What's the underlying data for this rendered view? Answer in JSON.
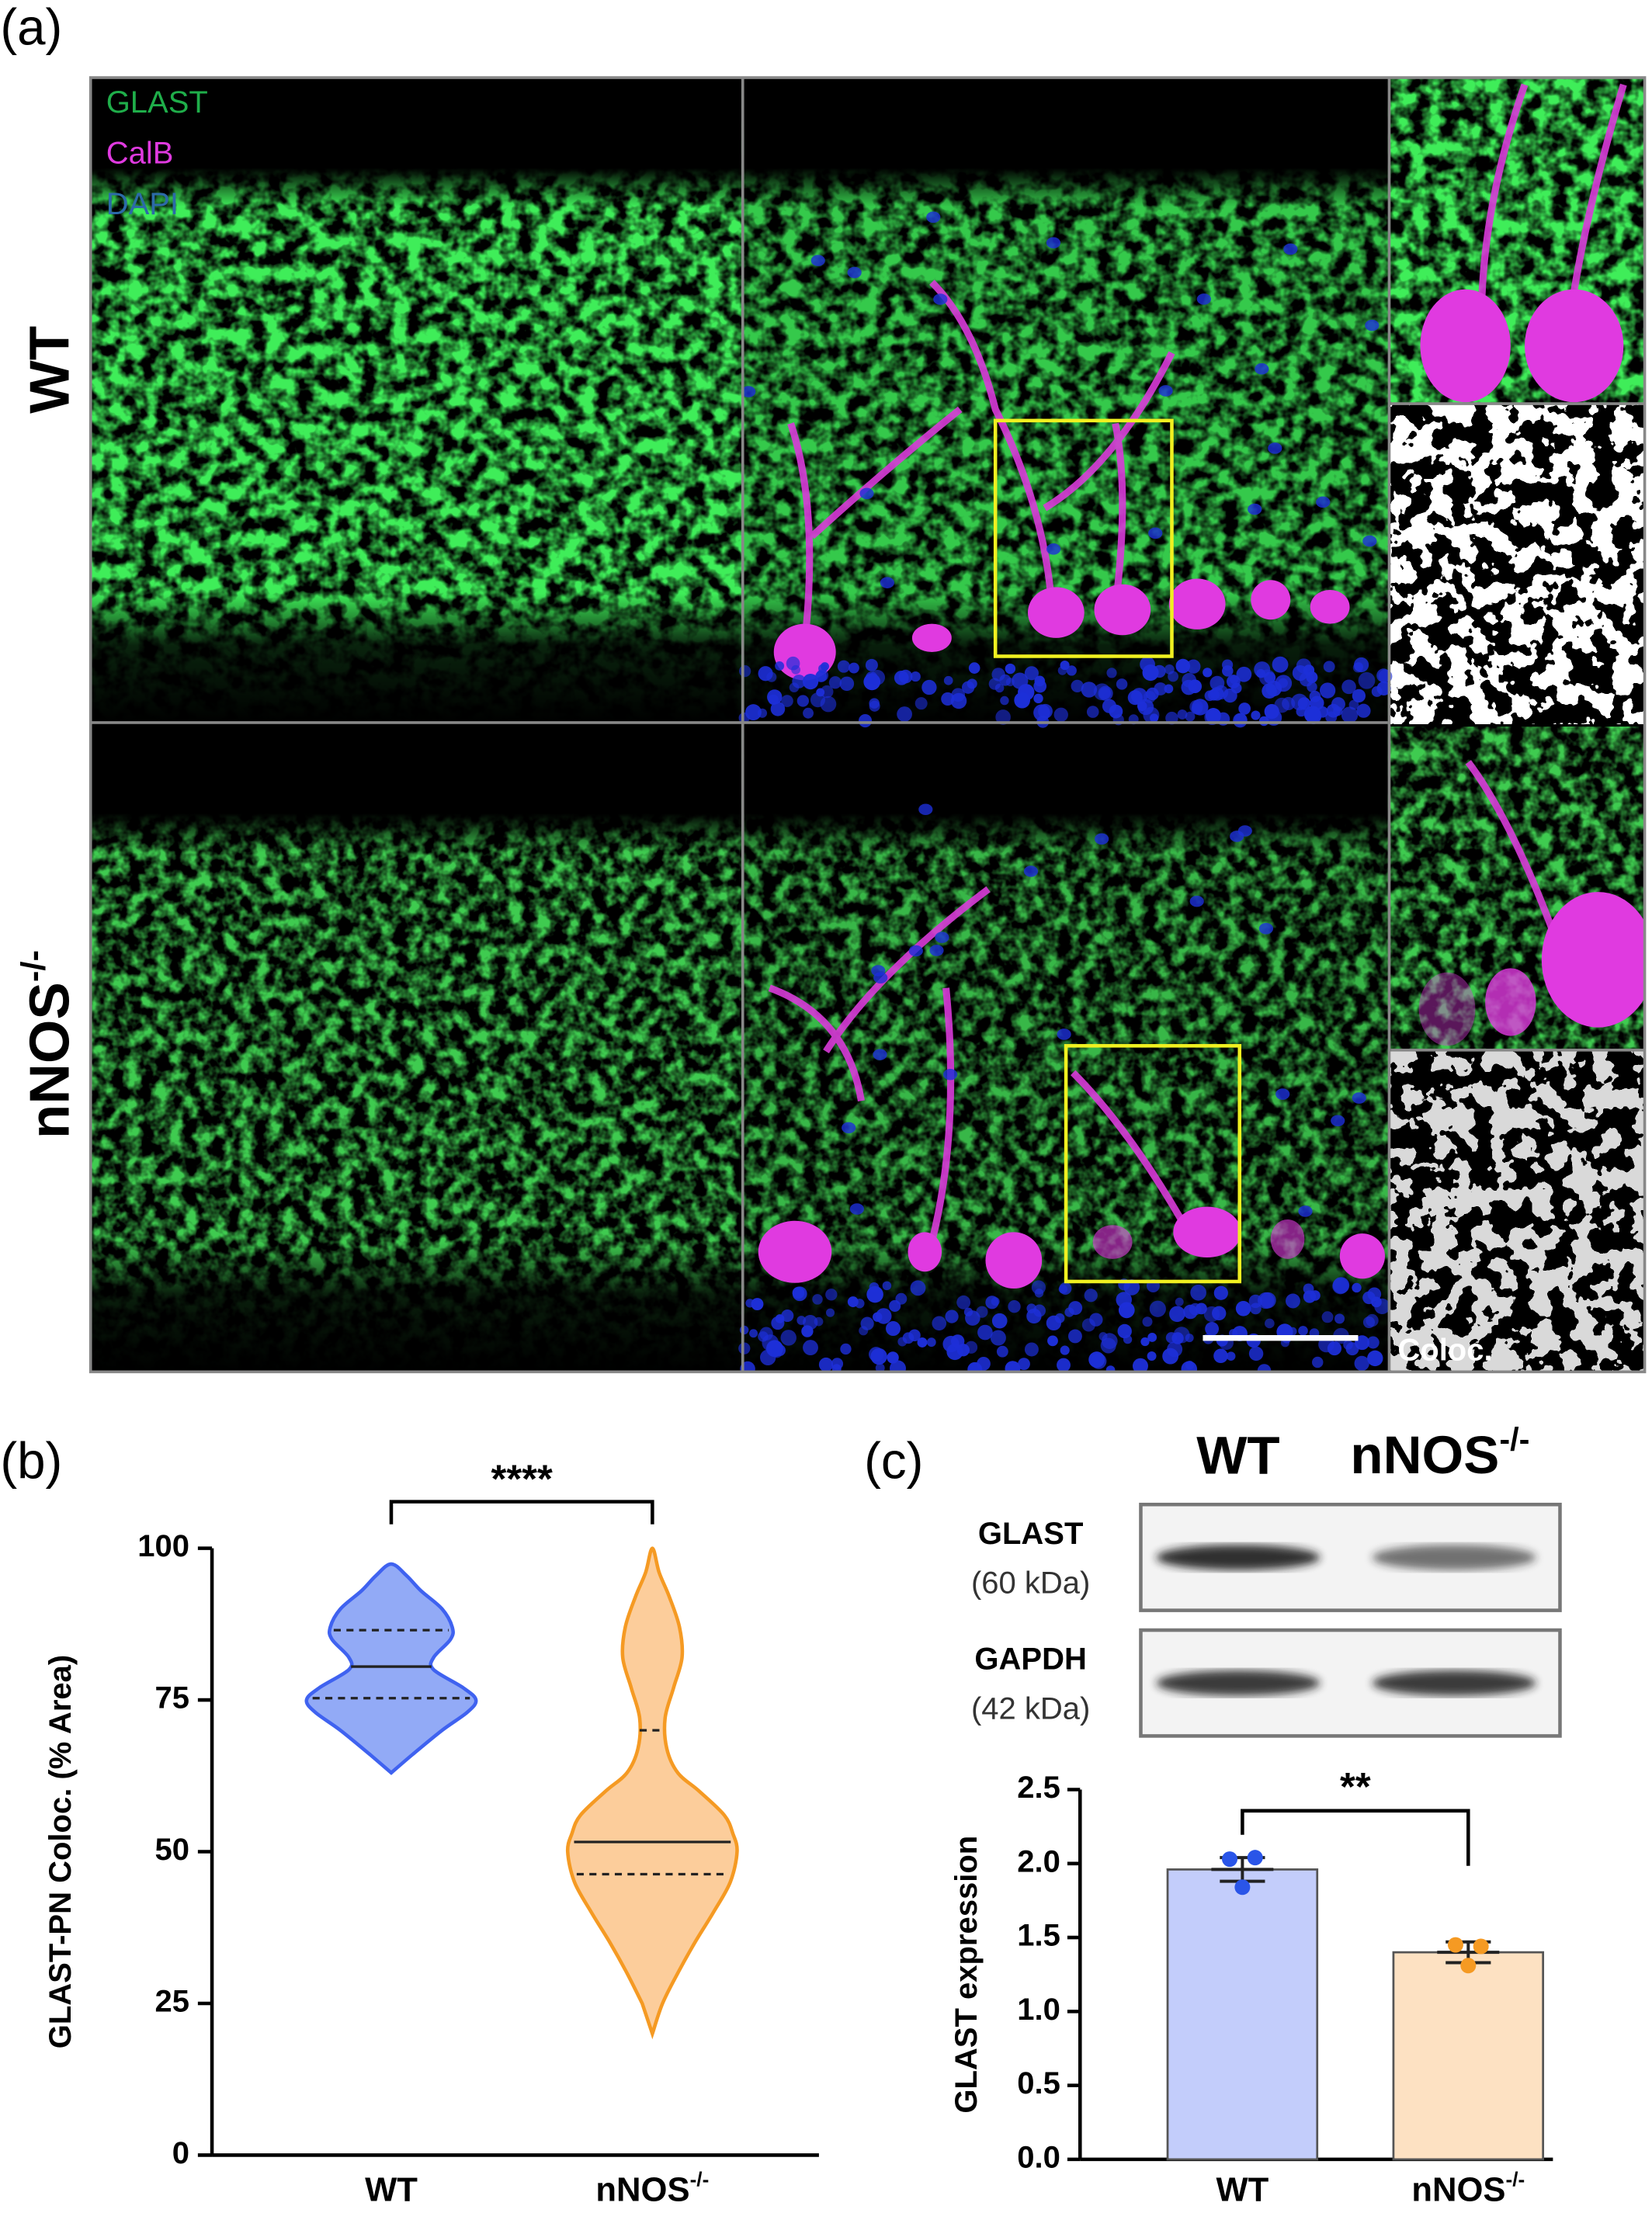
{
  "panel_a": {
    "label": "(a)",
    "channels": [
      {
        "name": "GLAST",
        "color": "#1fae4a"
      },
      {
        "name": "CalB",
        "color": "#e03ae0"
      },
      {
        "name": "DAPI",
        "color": "#2c6aa8"
      }
    ],
    "rows": [
      "WT",
      "nNOS-/-"
    ],
    "coloc_label": "Coloc."
  },
  "chart_data": [
    {
      "panel_label": "(b)",
      "type": "violin",
      "y_label": "GLAST-PN Coloc. (% Area)",
      "categories": [
        "WT",
        "nNOS-/-"
      ],
      "ylim": [
        0,
        100
      ],
      "yticks": [
        0,
        25,
        50,
        75,
        100
      ],
      "significance": "****",
      "violins": [
        {
          "color": "#3f62f0",
          "fill": "#7f9bf5",
          "q1": 75.3,
          "median": 80.5,
          "q3": 86.5,
          "density": {
            "y": [
              63,
              66,
              70,
              73,
              75,
              77,
              80,
              82,
              85,
              87,
              90,
              93,
              95.5,
              97.4
            ],
            "width": [
              0,
              0.25,
              0.6,
              0.9,
              1.0,
              0.85,
              0.5,
              0.5,
              0.7,
              0.72,
              0.6,
              0.35,
              0.18,
              0
            ]
          }
        },
        {
          "color": "#f59a23",
          "fill": "#fbc48a",
          "q1": 46.3,
          "median": 51.6,
          "q3": 70,
          "density": {
            "y": [
              20,
              25,
              30,
              35,
              40,
              45,
              50,
              53,
              56,
              60,
              63,
              67,
              72,
              77,
              82,
              87,
              92,
              96,
              100
            ],
            "width": [
              0,
              0.12,
              0.3,
              0.5,
              0.72,
              0.92,
              1.0,
              0.95,
              0.85,
              0.55,
              0.3,
              0.17,
              0.15,
              0.25,
              0.35,
              0.32,
              0.2,
              0.08,
              0
            ]
          }
        }
      ]
    },
    {
      "panel_label": "(c)",
      "type": "bar",
      "y_label": "GLAST expression",
      "blot": {
        "lanes": [
          "WT",
          "nNOS-/-"
        ],
        "bands": [
          {
            "name": "GLAST",
            "size": "(60 kDa)"
          },
          {
            "name": "GAPDH",
            "size": "(42 kDa)"
          }
        ]
      },
      "categories": [
        "WT",
        "nNOS-/-"
      ],
      "values": [
        1.96,
        1.4
      ],
      "errors": [
        0.08,
        0.07
      ],
      "points": [
        [
          2.03,
          2.04,
          1.84
        ],
        [
          1.45,
          1.44,
          1.31
        ]
      ],
      "colors": [
        "#c3cdfb",
        "#fde1c2"
      ],
      "point_colors": [
        "#2a55e8",
        "#f59a23"
      ],
      "ylim": [
        0,
        2.5
      ],
      "yticks": [
        {
          "value": 0,
          "label": "0.0"
        },
        {
          "value": 0.5,
          "label": "0.5"
        },
        {
          "value": 1,
          "label": "1.0"
        },
        {
          "value": 1.5,
          "label": "1.5"
        },
        {
          "value": 2,
          "label": "2.0"
        },
        2.5
      ],
      "significance": "**"
    }
  ]
}
